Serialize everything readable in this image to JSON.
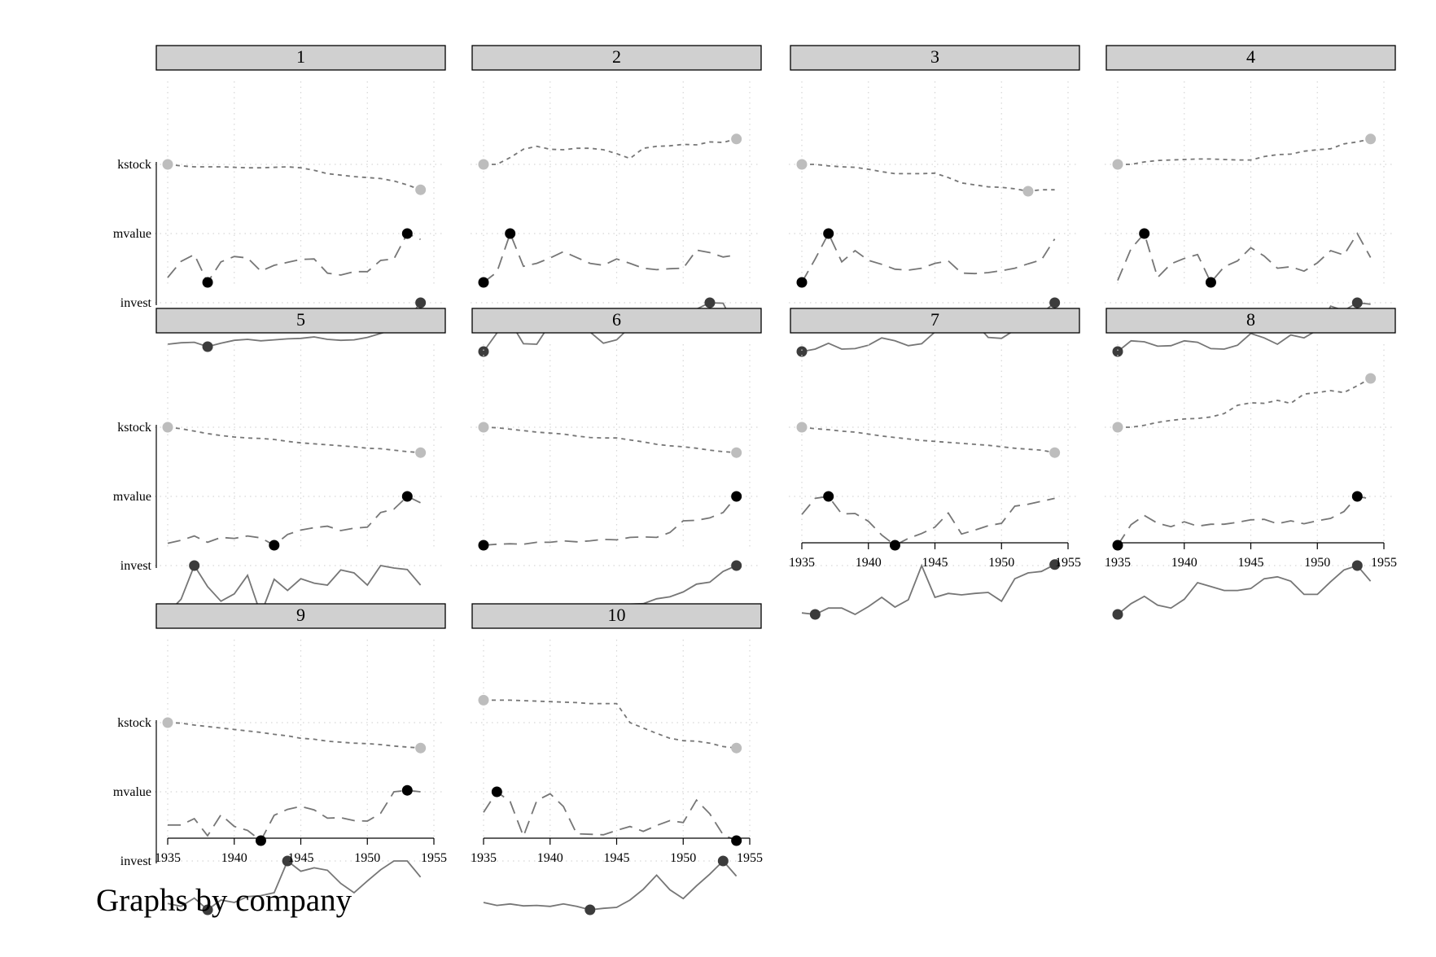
{
  "chart_data": {
    "type": "line",
    "note": "Graphs by company",
    "x": [
      1935,
      1936,
      1937,
      1938,
      1939,
      1940,
      1941,
      1942,
      1943,
      1944,
      1945,
      1946,
      1947,
      1948,
      1949,
      1950,
      1951,
      1952,
      1953,
      1954
    ],
    "xticks": [
      1935,
      1940,
      1945,
      1950,
      1955
    ],
    "xlim": [
      1935,
      1955
    ],
    "y_labels": [
      "kstock",
      "mvalue",
      "invest"
    ],
    "scale": "each series rescaled per panel (0 = lowest, 1 = highest value); not printed",
    "style": {
      "kstock": {
        "line_color": "#767676",
        "dash": "dotted",
        "marker_color": "#bdbdbd"
      },
      "mvalue": {
        "line_color": "#767676",
        "dash": "long-dash",
        "marker_color": "#000000"
      },
      "invest": {
        "line_color": "#767676",
        "dash": "solid",
        "marker_color": "#3c3c3c"
      },
      "strip_fill": "#d0d0d0",
      "grid_color": "#d6d6d6"
    },
    "panels": [
      {
        "company": "1",
        "kstock": [
          0.0,
          0.03,
          0.05,
          0.05,
          0.05,
          0.06,
          0.07,
          0.07,
          0.06,
          0.05,
          0.07,
          0.12,
          0.19,
          0.22,
          0.25,
          0.27,
          0.29,
          0.34,
          0.42,
          0.52
        ],
        "mvalue": [
          0.9,
          0.57,
          0.43,
          1.0,
          0.58,
          0.47,
          0.5,
          0.77,
          0.65,
          0.59,
          0.53,
          0.52,
          0.81,
          0.85,
          0.78,
          0.78,
          0.55,
          0.52,
          0.0,
          0.12
        ],
        "invest": [
          0.85,
          0.82,
          0.81,
          0.9,
          0.83,
          0.77,
          0.75,
          0.78,
          0.76,
          0.74,
          0.73,
          0.7,
          0.75,
          0.77,
          0.76,
          0.71,
          0.63,
          0.54,
          0.34,
          0.0
        ]
      },
      {
        "company": "2",
        "kstock": [
          0.0,
          0.0,
          -0.14,
          -0.31,
          -0.37,
          -0.31,
          -0.3,
          -0.33,
          -0.33,
          -0.3,
          -0.22,
          -0.12,
          -0.33,
          -0.37,
          -0.38,
          -0.41,
          -0.4,
          -0.46,
          -0.45,
          -0.52
        ],
        "mvalue": [
          1.0,
          0.79,
          0.0,
          0.67,
          0.61,
          0.5,
          0.37,
          0.49,
          0.61,
          0.65,
          0.52,
          0.61,
          0.71,
          0.74,
          0.72,
          0.71,
          0.34,
          0.39,
          0.48,
          0.44
        ],
        "invest": [
          1.0,
          0.62,
          0.39,
          0.84,
          0.85,
          0.43,
          0.2,
          0.3,
          0.6,
          0.83,
          0.76,
          0.5,
          0.52,
          0.36,
          0.51,
          0.48,
          0.13,
          0.0,
          0.01,
          0.55
        ]
      },
      {
        "company": "3",
        "kstock": [
          0.0,
          0.0,
          0.03,
          0.05,
          0.06,
          0.1,
          0.15,
          0.19,
          0.19,
          0.19,
          0.18,
          0.27,
          0.38,
          0.42,
          0.46,
          0.47,
          0.5,
          0.55,
          0.52,
          0.52
        ],
        "mvalue": [
          1.0,
          0.52,
          0.0,
          0.58,
          0.35,
          0.55,
          0.63,
          0.73,
          0.75,
          0.71,
          0.61,
          0.56,
          0.81,
          0.82,
          0.8,
          0.76,
          0.71,
          0.62,
          0.54,
          0.11
        ],
        "invest": [
          1.0,
          0.95,
          0.83,
          0.95,
          0.94,
          0.87,
          0.72,
          0.78,
          0.88,
          0.84,
          0.6,
          0.33,
          0.33,
          0.41,
          0.71,
          0.73,
          0.56,
          0.43,
          0.22,
          0.0
        ]
      },
      {
        "company": "4",
        "kstock": [
          0.0,
          0.0,
          -0.05,
          -0.08,
          -0.09,
          -0.1,
          -0.11,
          -0.11,
          -0.1,
          -0.09,
          -0.09,
          -0.16,
          -0.2,
          -0.21,
          -0.27,
          -0.3,
          -0.32,
          -0.42,
          -0.46,
          -0.52
        ],
        "mvalue": [
          0.96,
          0.31,
          0.0,
          0.9,
          0.62,
          0.51,
          0.43,
          1.0,
          0.68,
          0.56,
          0.29,
          0.46,
          0.71,
          0.68,
          0.77,
          0.6,
          0.35,
          0.44,
          0.0,
          0.49
        ],
        "invest": [
          1.0,
          0.78,
          0.8,
          0.89,
          0.88,
          0.78,
          0.81,
          0.94,
          0.95,
          0.87,
          0.63,
          0.72,
          0.85,
          0.66,
          0.72,
          0.56,
          0.07,
          0.16,
          0.0,
          0.03
        ]
      },
      {
        "company": "5",
        "kstock": [
          0.0,
          0.03,
          0.08,
          0.13,
          0.17,
          0.2,
          0.22,
          0.23,
          0.25,
          0.29,
          0.32,
          0.34,
          0.36,
          0.38,
          0.4,
          0.43,
          0.44,
          0.47,
          0.5,
          0.52
        ],
        "mvalue": [
          0.96,
          0.9,
          0.81,
          0.94,
          0.84,
          0.86,
          0.81,
          0.85,
          1.0,
          0.78,
          0.69,
          0.64,
          0.61,
          0.7,
          0.65,
          0.63,
          0.33,
          0.26,
          0.0,
          0.13
        ],
        "invest": [
          0.97,
          0.69,
          0.0,
          0.43,
          0.73,
          0.58,
          0.2,
          1.0,
          0.28,
          0.51,
          0.27,
          0.36,
          0.4,
          0.09,
          0.15,
          0.4,
          0.0,
          0.05,
          0.08,
          0.4
        ]
      },
      {
        "company": "6",
        "kstock": [
          0.0,
          0.01,
          0.04,
          0.07,
          0.1,
          0.12,
          0.14,
          0.18,
          0.21,
          0.22,
          0.22,
          0.26,
          0.3,
          0.35,
          0.38,
          0.4,
          0.43,
          0.47,
          0.5,
          0.52
        ],
        "mvalue": [
          1.0,
          0.98,
          0.97,
          0.98,
          0.94,
          0.94,
          0.91,
          0.93,
          0.91,
          0.88,
          0.89,
          0.84,
          0.83,
          0.84,
          0.74,
          0.5,
          0.49,
          0.44,
          0.33,
          0.0
        ],
        "invest": [
          1.0,
          0.97,
          0.97,
          0.96,
          0.97,
          0.95,
          0.84,
          0.84,
          0.96,
          0.93,
          0.88,
          0.79,
          0.78,
          0.68,
          0.64,
          0.54,
          0.38,
          0.34,
          0.12,
          0.0
        ]
      },
      {
        "company": "7",
        "kstock": [
          0.0,
          0.03,
          0.05,
          0.08,
          0.1,
          0.14,
          0.18,
          0.21,
          0.24,
          0.27,
          0.29,
          0.31,
          0.33,
          0.35,
          0.37,
          0.4,
          0.43,
          0.45,
          0.47,
          0.52
        ],
        "mvalue": [
          0.37,
          0.04,
          0.0,
          0.36,
          0.35,
          0.51,
          0.79,
          1.0,
          0.86,
          0.76,
          0.63,
          0.34,
          0.77,
          0.69,
          0.6,
          0.55,
          0.2,
          0.16,
          0.1,
          0.04
        ],
        "invest": [
          0.97,
          1.0,
          0.87,
          0.87,
          1.0,
          0.84,
          0.65,
          0.85,
          0.7,
          0.0,
          0.65,
          0.57,
          0.6,
          0.57,
          0.55,
          0.73,
          0.27,
          0.15,
          0.12,
          -0.02
        ]
      },
      {
        "company": "8",
        "kstock": [
          0.0,
          0.0,
          -0.04,
          -0.1,
          -0.14,
          -0.17,
          -0.18,
          -0.21,
          -0.28,
          -0.45,
          -0.5,
          -0.49,
          -0.55,
          -0.49,
          -0.68,
          -0.71,
          -0.75,
          -0.71,
          -0.85,
          -1.0
        ],
        "mvalue": [
          1.0,
          0.58,
          0.39,
          0.55,
          0.62,
          0.52,
          0.61,
          0.57,
          0.57,
          0.53,
          0.48,
          0.47,
          0.56,
          0.5,
          0.56,
          0.5,
          0.45,
          0.31,
          0.0,
          0.05
        ],
        "invest": [
          1.0,
          0.78,
          0.63,
          0.81,
          0.87,
          0.69,
          0.35,
          0.43,
          0.51,
          0.51,
          0.47,
          0.27,
          0.23,
          0.32,
          0.59,
          0.59,
          0.33,
          0.09,
          0.0,
          0.32
        ]
      },
      {
        "company": "9",
        "kstock": [
          0.0,
          0.01,
          0.05,
          0.08,
          0.11,
          0.14,
          0.17,
          0.2,
          0.24,
          0.27,
          0.32,
          0.34,
          0.38,
          0.4,
          0.42,
          0.43,
          0.45,
          0.48,
          0.5,
          0.52
        ],
        "mvalue": [
          0.68,
          0.68,
          0.55,
          0.9,
          0.47,
          0.71,
          0.79,
          1.0,
          0.48,
          0.36,
          0.3,
          0.37,
          0.54,
          0.53,
          0.59,
          0.6,
          0.44,
          0.0,
          -0.03,
          0.0
        ],
        "invest": [
          0.87,
          0.93,
          0.76,
          1.0,
          0.8,
          0.85,
          0.73,
          0.71,
          0.65,
          0.0,
          0.21,
          0.14,
          0.19,
          0.46,
          0.65,
          0.41,
          0.18,
          0.0,
          0.0,
          0.33
        ]
      },
      {
        "company": "10",
        "kstock": [
          -0.46,
          -0.46,
          -0.46,
          -0.45,
          -0.44,
          -0.43,
          -0.42,
          -0.41,
          -0.39,
          -0.39,
          -0.39,
          0.0,
          0.11,
          0.22,
          0.32,
          0.37,
          0.38,
          0.42,
          0.49,
          0.52
        ],
        "mvalue": [
          0.42,
          0.0,
          0.2,
          0.91,
          0.18,
          0.04,
          0.3,
          0.86,
          0.87,
          0.88,
          0.79,
          0.71,
          0.81,
          0.69,
          0.59,
          0.63,
          0.17,
          0.45,
          0.88,
          1.0
        ],
        "invest": [
          0.85,
          0.91,
          0.88,
          0.92,
          0.91,
          0.93,
          0.88,
          0.93,
          1.0,
          0.97,
          0.95,
          0.8,
          0.58,
          0.29,
          0.59,
          0.77,
          0.51,
          0.27,
          0.0,
          0.31
        ]
      }
    ]
  }
}
